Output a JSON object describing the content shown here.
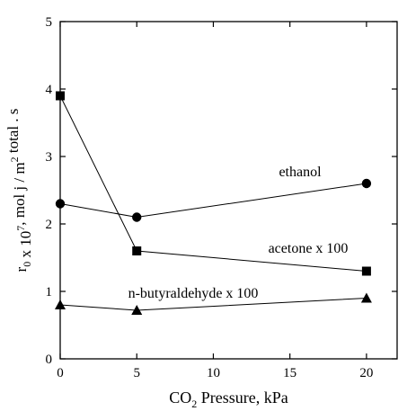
{
  "chart_data": {
    "type": "line",
    "title": "",
    "xlabel_parts": {
      "main": "CO",
      "sub": "2",
      "rest": " Pressure, kPa"
    },
    "ylabel_parts": [
      {
        "t": "r",
        "s": "normal"
      },
      {
        "t": "0",
        "s": "sub"
      },
      {
        "t": " x 10",
        "s": "normal"
      },
      {
        "t": "7",
        "s": "sup"
      },
      {
        "t": ", mol j / m",
        "s": "normal"
      },
      {
        "t": "2",
        "s": "sup"
      },
      {
        "t": " total . s",
        "s": "normal"
      }
    ],
    "xlim": [
      0,
      22
    ],
    "ylim": [
      0,
      5
    ],
    "xticks": [
      0,
      5,
      10,
      15,
      20
    ],
    "yticks": [
      0,
      1,
      2,
      3,
      4,
      5
    ],
    "grid": false,
    "legend": "none",
    "series": [
      {
        "name": "acetone x 100",
        "marker": "square",
        "color": "#000000",
        "x": [
          0,
          5,
          20
        ],
        "y": [
          3.9,
          1.6,
          1.3
        ]
      },
      {
        "name": "ethanol",
        "marker": "circle",
        "color": "#000000",
        "x": [
          0,
          5,
          20
        ],
        "y": [
          2.3,
          2.1,
          2.6
        ]
      },
      {
        "name": "n-butyraldehyde x 100",
        "marker": "triangle",
        "color": "#000000",
        "x": [
          0,
          5,
          20
        ],
        "y": [
          0.8,
          0.72,
          0.9
        ]
      }
    ]
  }
}
